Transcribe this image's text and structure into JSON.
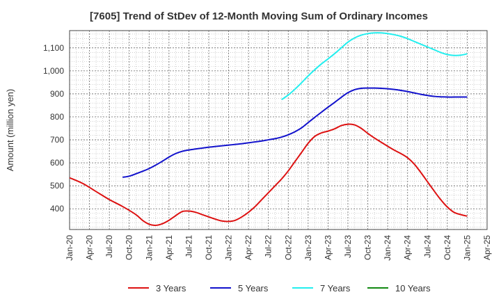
{
  "chart_data": {
    "type": "line",
    "title": "[7605]  Trend of StDev of 12-Month Moving Sum of Ordinary Incomes",
    "xlabel": "",
    "ylabel": "Amount (million yen)",
    "x_ticks": [
      "Jan-20",
      "Apr-20",
      "Jul-20",
      "Oct-20",
      "Jan-21",
      "Apr-21",
      "Jul-21",
      "Oct-21",
      "Jan-22",
      "Apr-22",
      "Jul-22",
      "Oct-22",
      "Jan-23",
      "Apr-23",
      "Jul-23",
      "Oct-23",
      "Jan-24",
      "Apr-24",
      "Jul-24",
      "Oct-24",
      "Jan-25",
      "Apr-25"
    ],
    "y_ticks": [
      "400",
      "500",
      "600",
      "700",
      "800",
      "900",
      "1,000",
      "1,100"
    ],
    "y_tick_values": [
      400,
      500,
      600,
      700,
      800,
      900,
      1000,
      1100
    ],
    "ylim": [
      310,
      1175
    ],
    "grid": true,
    "legend_position": "bottom",
    "series": [
      {
        "name": "3 Years",
        "color": "#dd1111",
        "points": [
          [
            "2020-01",
            535
          ],
          [
            "2020-03",
            510
          ],
          [
            "2020-05",
            475
          ],
          [
            "2020-07",
            440
          ],
          [
            "2020-09",
            410
          ],
          [
            "2020-11",
            375
          ],
          [
            "2020-12",
            350
          ],
          [
            "2021-01",
            333
          ],
          [
            "2021-02",
            328
          ],
          [
            "2021-03",
            335
          ],
          [
            "2021-04",
            350
          ],
          [
            "2021-05",
            370
          ],
          [
            "2021-06",
            388
          ],
          [
            "2021-07",
            390
          ],
          [
            "2021-08",
            385
          ],
          [
            "2021-09",
            375
          ],
          [
            "2021-10",
            365
          ],
          [
            "2021-11",
            355
          ],
          [
            "2021-12",
            347
          ],
          [
            "2022-01",
            345
          ],
          [
            "2022-02",
            350
          ],
          [
            "2022-03",
            365
          ],
          [
            "2022-04",
            385
          ],
          [
            "2022-05",
            410
          ],
          [
            "2022-06",
            440
          ],
          [
            "2022-07",
            470
          ],
          [
            "2022-08",
            500
          ],
          [
            "2022-09",
            530
          ],
          [
            "2022-10",
            565
          ],
          [
            "2022-11",
            605
          ],
          [
            "2022-12",
            645
          ],
          [
            "2023-01",
            685
          ],
          [
            "2023-02",
            715
          ],
          [
            "2023-03",
            730
          ],
          [
            "2023-04",
            738
          ],
          [
            "2023-05",
            748
          ],
          [
            "2023-06",
            762
          ],
          [
            "2023-07",
            768
          ],
          [
            "2023-08",
            765
          ],
          [
            "2023-09",
            750
          ],
          [
            "2023-10",
            728
          ],
          [
            "2023-11",
            708
          ],
          [
            "2023-12",
            690
          ],
          [
            "2024-01",
            672
          ],
          [
            "2024-02",
            655
          ],
          [
            "2024-03",
            640
          ],
          [
            "2024-04",
            622
          ],
          [
            "2024-05",
            595
          ],
          [
            "2024-06",
            558
          ],
          [
            "2024-07",
            518
          ],
          [
            "2024-08",
            478
          ],
          [
            "2024-09",
            440
          ],
          [
            "2024-10",
            408
          ],
          [
            "2024-11",
            385
          ],
          [
            "2024-12",
            375
          ],
          [
            "2025-01",
            368
          ]
        ]
      },
      {
        "name": "5 Years",
        "color": "#1111cc",
        "points": [
          [
            "2020-09",
            537
          ],
          [
            "2020-10",
            542
          ],
          [
            "2020-11",
            552
          ],
          [
            "2020-12",
            563
          ],
          [
            "2021-01",
            575
          ],
          [
            "2021-02",
            590
          ],
          [
            "2021-03",
            607
          ],
          [
            "2021-04",
            625
          ],
          [
            "2021-05",
            640
          ],
          [
            "2021-06",
            650
          ],
          [
            "2021-07",
            656
          ],
          [
            "2021-08",
            660
          ],
          [
            "2021-09",
            664
          ],
          [
            "2021-10",
            668
          ],
          [
            "2021-11",
            671
          ],
          [
            "2021-12",
            674
          ],
          [
            "2022-01",
            677
          ],
          [
            "2022-02",
            680
          ],
          [
            "2022-03",
            683
          ],
          [
            "2022-04",
            687
          ],
          [
            "2022-05",
            691
          ],
          [
            "2022-06",
            695
          ],
          [
            "2022-07",
            700
          ],
          [
            "2022-08",
            705
          ],
          [
            "2022-09",
            712
          ],
          [
            "2022-10",
            722
          ],
          [
            "2022-11",
            735
          ],
          [
            "2022-12",
            752
          ],
          [
            "2023-01",
            775
          ],
          [
            "2023-02",
            798
          ],
          [
            "2023-03",
            820
          ],
          [
            "2023-04",
            842
          ],
          [
            "2023-05",
            863
          ],
          [
            "2023-06",
            885
          ],
          [
            "2023-07",
            905
          ],
          [
            "2023-08",
            918
          ],
          [
            "2023-09",
            924
          ],
          [
            "2023-10",
            925
          ],
          [
            "2023-11",
            925
          ],
          [
            "2023-12",
            924
          ],
          [
            "2024-01",
            922
          ],
          [
            "2024-02",
            919
          ],
          [
            "2024-03",
            915
          ],
          [
            "2024-04",
            910
          ],
          [
            "2024-05",
            904
          ],
          [
            "2024-06",
            898
          ],
          [
            "2024-07",
            893
          ],
          [
            "2024-08",
            889
          ],
          [
            "2024-09",
            887
          ],
          [
            "2024-10",
            886
          ],
          [
            "2024-11",
            886
          ],
          [
            "2024-12",
            886
          ],
          [
            "2025-01",
            886
          ]
        ]
      },
      {
        "name": "7 Years",
        "color": "#22eeee",
        "points": [
          [
            "2022-09",
            875
          ],
          [
            "2022-10",
            895
          ],
          [
            "2022-11",
            920
          ],
          [
            "2022-12",
            948
          ],
          [
            "2023-01",
            978
          ],
          [
            "2023-02",
            1005
          ],
          [
            "2023-03",
            1030
          ],
          [
            "2023-04",
            1052
          ],
          [
            "2023-05",
            1075
          ],
          [
            "2023-06",
            1100
          ],
          [
            "2023-07",
            1125
          ],
          [
            "2023-08",
            1143
          ],
          [
            "2023-09",
            1155
          ],
          [
            "2023-10",
            1162
          ],
          [
            "2023-11",
            1165
          ],
          [
            "2023-12",
            1165
          ],
          [
            "2024-01",
            1162
          ],
          [
            "2024-02",
            1157
          ],
          [
            "2024-03",
            1150
          ],
          [
            "2024-04",
            1140
          ],
          [
            "2024-05",
            1128
          ],
          [
            "2024-06",
            1116
          ],
          [
            "2024-07",
            1104
          ],
          [
            "2024-08",
            1092
          ],
          [
            "2024-09",
            1080
          ],
          [
            "2024-10",
            1071
          ],
          [
            "2024-11",
            1067
          ],
          [
            "2024-12",
            1068
          ],
          [
            "2025-01",
            1074
          ]
        ]
      },
      {
        "name": "10 Years",
        "color": "#118811",
        "points": []
      }
    ]
  }
}
